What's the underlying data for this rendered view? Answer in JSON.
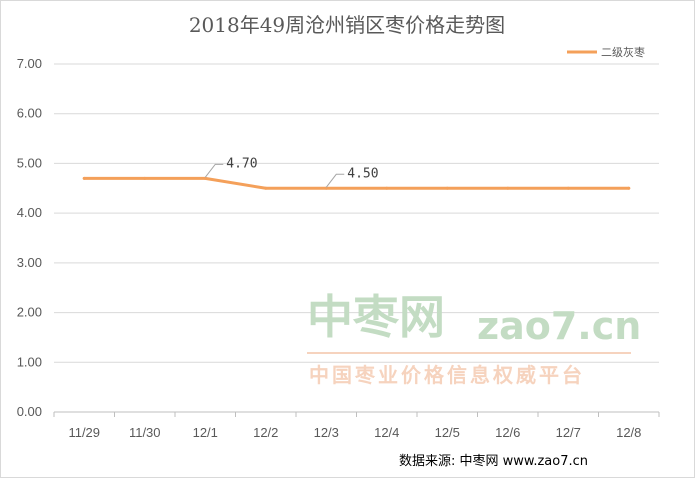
{
  "chart_data": {
    "type": "line",
    "title": "2018年49周沧州销区枣价格走势图",
    "categories": [
      "11/29",
      "11/30",
      "12/1",
      "12/2",
      "12/3",
      "12/4",
      "12/5",
      "12/6",
      "12/7",
      "12/8"
    ],
    "series": [
      {
        "name": "二级灰枣",
        "color": "#f4a05a",
        "values": [
          4.7,
          4.7,
          4.7,
          4.5,
          4.5,
          4.5,
          4.5,
          4.5,
          4.5,
          4.5
        ]
      }
    ],
    "ylim": [
      0,
      7
    ],
    "yticks": [
      "0.00",
      "1.00",
      "2.00",
      "3.00",
      "4.00",
      "5.00",
      "6.00",
      "7.00"
    ],
    "annotations": [
      {
        "label": "4.70",
        "category": "12/1",
        "value": 4.7
      },
      {
        "label": "4.50",
        "category": "12/3",
        "value": 4.5
      }
    ],
    "legend_position": "top-right",
    "grid": true
  },
  "watermark": {
    "brand_cn": "中枣网",
    "brand_domain": "zao7.cn",
    "tagline": "中国枣业价格信息权威平台",
    "colors": {
      "green": "#c3dcc3",
      "orange": "#f6d3be"
    }
  },
  "source_text": "数据来源:   中枣网 www.zao7.cn"
}
